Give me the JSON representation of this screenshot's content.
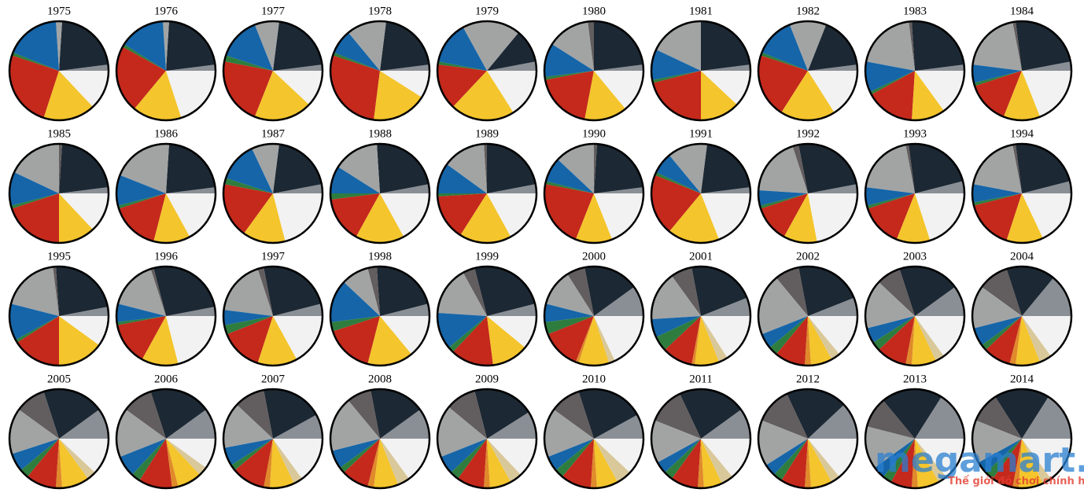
{
  "palette": [
    "#8a8f96",
    "#1c2833",
    "#625d5e",
    "#a2a4a4",
    "#1565a8",
    "#2e7d3e",
    "#c4291c",
    "#e08a2b",
    "#f4c52c",
    "#d9c89a",
    "#f2f2f2"
  ],
  "watermark": {
    "brand": "megamart.vn",
    "tagline": "Thế giới đồ chơi chính hãng"
  },
  "chart_data": [
    {
      "type": "pie",
      "title": "1975",
      "values": [
        2,
        22,
        0,
        2,
        18,
        1,
        25,
        0,
        17,
        0,
        13
      ]
    },
    {
      "type": "pie",
      "title": "1976",
      "values": [
        2,
        22,
        0,
        2,
        15,
        1,
        22,
        0,
        16,
        0,
        20
      ]
    },
    {
      "type": "pie",
      "title": "1977",
      "values": [
        2,
        21,
        0,
        8,
        14,
        2,
        22,
        0,
        19,
        0,
        12
      ]
    },
    {
      "type": "pie",
      "title": "1978",
      "values": [
        2,
        21,
        0,
        13,
        8,
        1,
        28,
        0,
        18,
        0,
        9
      ]
    },
    {
      "type": "pie",
      "title": "1979",
      "values": [
        3,
        11,
        0,
        19,
        14,
        1,
        15,
        0,
        21,
        0,
        16
      ]
    },
    {
      "type": "pie",
      "title": "1980",
      "values": [
        2,
        23,
        2,
        14,
        11,
        1,
        19,
        0,
        14,
        0,
        14
      ]
    },
    {
      "type": "pie",
      "title": "1981",
      "values": [
        2,
        23,
        0,
        18,
        10,
        1,
        21,
        0,
        13,
        0,
        12
      ]
    },
    {
      "type": "pie",
      "title": "1982",
      "values": [
        2,
        17,
        0,
        12,
        13,
        1,
        21,
        0,
        18,
        0,
        16
      ]
    },
    {
      "type": "pie",
      "title": "1983",
      "values": [
        2,
        24,
        1,
        20,
        10,
        1,
        16,
        0,
        11,
        0,
        15
      ]
    },
    {
      "type": "pie",
      "title": "1984",
      "values": [
        3,
        24,
        1,
        20,
        6,
        1,
        14,
        0,
        12,
        0,
        19
      ]
    },
    {
      "type": "pie",
      "title": "1985",
      "values": [
        2,
        22,
        1,
        18,
        11,
        1,
        20,
        0,
        12,
        0,
        13
      ]
    },
    {
      "type": "pie",
      "title": "1986",
      "values": [
        2,
        22,
        0,
        20,
        10,
        1,
        16,
        0,
        12,
        0,
        17
      ]
    },
    {
      "type": "pie",
      "title": "1987",
      "values": [
        3,
        20,
        0,
        9,
        13,
        2,
        18,
        0,
        14,
        0,
        21
      ]
    },
    {
      "type": "pie",
      "title": "1988",
      "values": [
        3,
        23,
        0,
        15,
        9,
        2,
        15,
        0,
        16,
        0,
        17
      ]
    },
    {
      "type": "pie",
      "title": "1989",
      "values": [
        3,
        22,
        1,
        14,
        10,
        1,
        15,
        0,
        17,
        0,
        17
      ]
    },
    {
      "type": "pie",
      "title": "1990",
      "values": [
        2,
        22,
        1,
        13,
        8,
        1,
        22,
        0,
        12,
        0,
        19
      ]
    },
    {
      "type": "pie",
      "title": "1991",
      "values": [
        2,
        21,
        0,
        13,
        7,
        1,
        20,
        0,
        17,
        0,
        19
      ]
    },
    {
      "type": "pie",
      "title": "1992",
      "values": [
        3,
        25,
        2,
        19,
        5,
        1,
        12,
        0,
        11,
        0,
        22
      ]
    },
    {
      "type": "pie",
      "title": "1993",
      "values": [
        4,
        23,
        1,
        20,
        6,
        1,
        14,
        0,
        11,
        0,
        20
      ]
    },
    {
      "type": "pie",
      "title": "1994",
      "values": [
        4,
        23,
        1,
        19,
        6,
        1,
        16,
        0,
        12,
        0,
        18
      ]
    },
    {
      "type": "pie",
      "title": "1995",
      "values": [
        3,
        23,
        1,
        19,
        12,
        1,
        16,
        0,
        15,
        0,
        10
      ]
    },
    {
      "type": "pie",
      "title": "1996",
      "values": [
        3,
        26,
        1,
        16,
        6,
        1,
        14,
        0,
        12,
        0,
        21
      ]
    },
    {
      "type": "pie",
      "title": "1997",
      "values": [
        4,
        24,
        2,
        18,
        5,
        3,
        14,
        0,
        13,
        0,
        17
      ]
    },
    {
      "type": "pie",
      "title": "1998",
      "values": [
        4,
        22,
        3,
        9,
        14,
        3,
        16,
        0,
        15,
        0,
        14
      ]
    },
    {
      "type": "pie",
      "title": "1999",
      "values": [
        4,
        25,
        4,
        16,
        12,
        2,
        14,
        0,
        12,
        0,
        11
      ]
    },
    {
      "type": "pie",
      "title": "2000",
      "values": [
        10,
        18,
        6,
        12,
        6,
        4,
        13,
        1,
        10,
        2,
        18
      ]
    },
    {
      "type": "pie",
      "title": "2001",
      "values": [
        6,
        22,
        7,
        16,
        6,
        5,
        10,
        1,
        8,
        3,
        16
      ]
    },
    {
      "type": "pie",
      "title": "2002",
      "values": [
        6,
        22,
        8,
        20,
        5,
        3,
        10,
        2,
        7,
        3,
        14
      ]
    },
    {
      "type": "pie",
      "title": "2003",
      "values": [
        10,
        20,
        8,
        16,
        5,
        3,
        10,
        2,
        8,
        3,
        15
      ]
    },
    {
      "type": "pie",
      "title": "2004",
      "values": [
        14,
        16,
        10,
        14,
        6,
        2,
        9,
        2,
        8,
        4,
        15
      ]
    },
    {
      "type": "pie",
      "title": "2005",
      "values": [
        10,
        20,
        10,
        15,
        6,
        3,
        10,
        2,
        9,
        3,
        12
      ]
    },
    {
      "type": "pie",
      "title": "2006",
      "values": [
        10,
        20,
        10,
        16,
        7,
        3,
        11,
        2,
        8,
        3,
        10
      ]
    },
    {
      "type": "pie",
      "title": "2007",
      "values": [
        8,
        20,
        10,
        15,
        6,
        2,
        11,
        2,
        8,
        3,
        15
      ]
    },
    {
      "type": "pie",
      "title": "2008",
      "values": [
        10,
        18,
        8,
        18,
        6,
        2,
        9,
        2,
        8,
        4,
        15
      ]
    },
    {
      "type": "pie",
      "title": "2009",
      "values": [
        9,
        20,
        10,
        17,
        6,
        3,
        9,
        2,
        7,
        4,
        13
      ]
    },
    {
      "type": "pie",
      "title": "2010",
      "values": [
        8,
        22,
        10,
        16,
        5,
        3,
        10,
        2,
        7,
        5,
        12
      ]
    },
    {
      "type": "pie",
      "title": "2011",
      "values": [
        10,
        22,
        12,
        14,
        4,
        3,
        9,
        2,
        6,
        4,
        14
      ]
    },
    {
      "type": "pie",
      "title": "2012",
      "values": [
        12,
        20,
        12,
        15,
        4,
        3,
        8,
        2,
        7,
        3,
        14
      ]
    },
    {
      "type": "pie",
      "title": "2013",
      "values": [
        16,
        20,
        10,
        14,
        4,
        3,
        7,
        2,
        7,
        3,
        14
      ]
    },
    {
      "type": "pie",
      "title": "2014",
      "values": [
        16,
        18,
        10,
        14,
        4,
        3,
        7,
        2,
        8,
        3,
        15
      ]
    }
  ]
}
